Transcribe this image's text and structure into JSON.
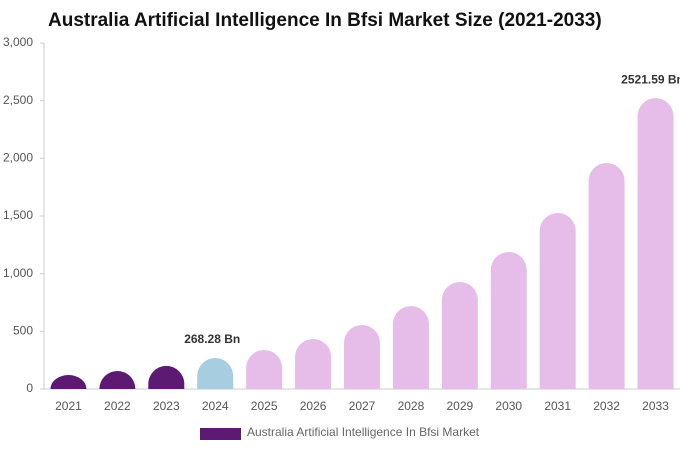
{
  "chart_data": {
    "type": "bar",
    "title": "Australia Artificial Intelligence In Bfsi Market Size (2021-2033)",
    "categories": [
      "2021",
      "2022",
      "2023",
      "2024",
      "2025",
      "2026",
      "2027",
      "2028",
      "2029",
      "2030",
      "2031",
      "2032",
      "2033"
    ],
    "series": [
      {
        "name": "Australia Artificial Intelligence In Bfsi Market",
        "color": "#5c1a73",
        "values": [
          121,
          156,
          200,
          268.28,
          338,
          434,
          555,
          720,
          928,
          1188,
          1526,
          1960,
          2521.59
        ],
        "value_labels": [
          null,
          null,
          null,
          "268.28 Bn",
          null,
          null,
          null,
          null,
          null,
          null,
          null,
          null,
          "2521.59 Bn"
        ],
        "colors": [
          "#5c1a73",
          "#5c1a73",
          "#5c1a73",
          "#a6cde0",
          "#e6bde8",
          "#e6bde8",
          "#e6bde8",
          "#e6bde8",
          "#e6bde8",
          "#e6bde8",
          "#e6bde8",
          "#e6bde8",
          "#e6bde8"
        ]
      }
    ],
    "ylim": [
      0,
      3000
    ],
    "yticks": [
      0,
      500,
      {
        "value": 1000,
        "label": "1,000"
      },
      {
        "value": 1500,
        "label": "1,500"
      },
      {
        "value": 2000,
        "label": "2,000"
      },
      {
        "value": 2500,
        "label": "2,500"
      },
      {
        "value": 3000,
        "label": "3,000"
      }
    ],
    "grid": false
  }
}
